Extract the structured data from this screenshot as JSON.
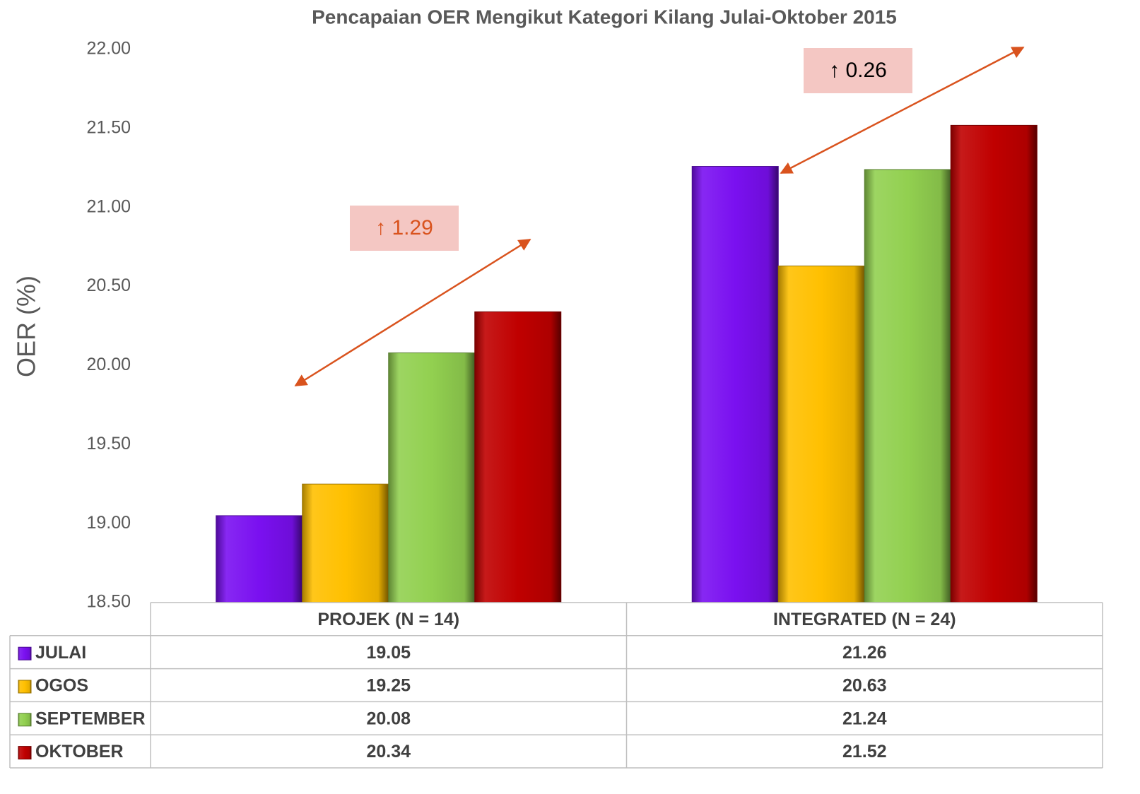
{
  "chart_data": {
    "type": "bar",
    "title": "Pencapaian OER Mengikut Kategori Kilang Julai-Oktober 2015",
    "y_label": "OER (%)",
    "categories": [
      "PROJEK (N = 14)",
      "INTEGRATED (N = 24)"
    ],
    "series": [
      {
        "name": "JULAI",
        "color": "#7a10f0",
        "values": [
          19.05,
          21.26
        ]
      },
      {
        "name": "OGOS",
        "color": "#ffc000",
        "values": [
          19.25,
          20.63
        ]
      },
      {
        "name": "SEPTEMBER",
        "color": "#92d050",
        "values": [
          20.08,
          21.24
        ]
      },
      {
        "name": "OKTOBER",
        "color": "#c00000",
        "values": [
          20.34,
          21.52
        ]
      }
    ],
    "ylim": [
      18.5,
      22
    ],
    "yticks": [
      {
        "value": 18.5,
        "label": "18.50"
      },
      {
        "value": 19,
        "label": "19.00"
      },
      {
        "value": 19.5,
        "label": "19.50"
      },
      {
        "value": 20,
        "label": "20.00"
      },
      {
        "value": 20.5,
        "label": "20.50"
      },
      {
        "value": 21,
        "label": "21.00"
      },
      {
        "value": 21.5,
        "label": "21.50"
      },
      {
        "value": 22,
        "label": "22.00"
      }
    ],
    "annotations": [
      "↑ 1.29",
      "↑ 0.26"
    ],
    "data_table": true
  }
}
